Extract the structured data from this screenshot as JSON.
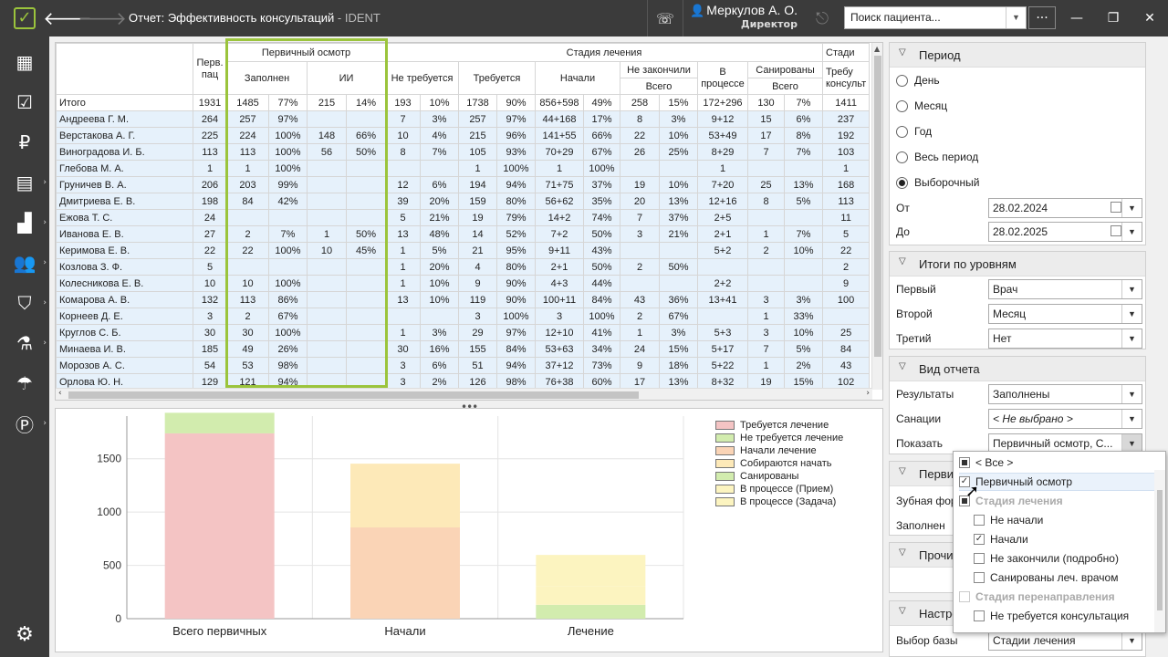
{
  "window": {
    "title": "Отчет: Эффективность консультаций",
    "app_suffix": " - IDENT"
  },
  "user": {
    "name": "Меркулов А. О.",
    "role": "Директор"
  },
  "search": {
    "placeholder": "Поиск пациента..."
  },
  "grid": {
    "headers": {
      "name": "",
      "first_patients": "Перв. пац",
      "primary_exam": "Первичный осмотр",
      "filled": "Заполнен",
      "ii": "ИИ",
      "treatment_stage": "Стадия лечения",
      "not_required": "Не требуется",
      "required": "Требуется",
      "started": "Начали",
      "not_finished": "Не закончили",
      "not_finished_total": "Всего",
      "in_process": "В процессе",
      "sanitized": "Санированы",
      "sanitized_total": "Всего",
      "stage_cut": "Стади",
      "requires_consult": "Требу консульт"
    },
    "total": [
      "Итого",
      "1931",
      "1485",
      "77%",
      "215",
      "14%",
      "193",
      "10%",
      "1738",
      "90%",
      "856+598",
      "49%",
      "258",
      "15%",
      "172+296",
      "130",
      "7%",
      "1411"
    ],
    "rows": [
      [
        "Андреева Г. М.",
        "264",
        "257",
        "97%",
        "",
        "",
        "7",
        "3%",
        "257",
        "97%",
        "44+168",
        "17%",
        "8",
        "3%",
        "9+12",
        "15",
        "6%",
        "237"
      ],
      [
        "Верстакова А. Г.",
        "225",
        "224",
        "100%",
        "148",
        "66%",
        "10",
        "4%",
        "215",
        "96%",
        "141+55",
        "66%",
        "22",
        "10%",
        "53+49",
        "17",
        "8%",
        "192"
      ],
      [
        "Виноградова И. Б.",
        "113",
        "113",
        "100%",
        "56",
        "50%",
        "8",
        "7%",
        "105",
        "93%",
        "70+29",
        "67%",
        "26",
        "25%",
        "8+29",
        "7",
        "7%",
        "103"
      ],
      [
        "Глебова М. А.",
        "1",
        "1",
        "100%",
        "",
        "",
        "",
        "",
        "1",
        "100%",
        "1",
        "100%",
        "",
        "",
        "1",
        "",
        "",
        "1"
      ],
      [
        "Груничев В. А.",
        "206",
        "203",
        "99%",
        "",
        "",
        "12",
        "6%",
        "194",
        "94%",
        "71+75",
        "37%",
        "19",
        "10%",
        "7+20",
        "25",
        "13%",
        "168"
      ],
      [
        "Дмитриева Е. В.",
        "198",
        "84",
        "42%",
        "",
        "",
        "39",
        "20%",
        "159",
        "80%",
        "56+62",
        "35%",
        "20",
        "13%",
        "12+16",
        "8",
        "5%",
        "113"
      ],
      [
        "Ежова Т. С.",
        "24",
        "",
        "",
        "",
        "",
        "5",
        "21%",
        "19",
        "79%",
        "14+2",
        "74%",
        "7",
        "37%",
        "2+5",
        "",
        "",
        "11"
      ],
      [
        "Иванова Е. В.",
        "27",
        "2",
        "7%",
        "1",
        "50%",
        "13",
        "48%",
        "14",
        "52%",
        "7+2",
        "50%",
        "3",
        "21%",
        "2+1",
        "1",
        "7%",
        "5"
      ],
      [
        "Керимова Е. В.",
        "22",
        "22",
        "100%",
        "10",
        "45%",
        "1",
        "5%",
        "21",
        "95%",
        "9+11",
        "43%",
        "",
        "",
        "5+2",
        "2",
        "10%",
        "22"
      ],
      [
        "Козлова З. Ф.",
        "5",
        "",
        "",
        "",
        "",
        "1",
        "20%",
        "4",
        "80%",
        "2+1",
        "50%",
        "2",
        "50%",
        "",
        "",
        "",
        "2"
      ],
      [
        "Колесникова Е. В.",
        "10",
        "10",
        "100%",
        "",
        "",
        "1",
        "10%",
        "9",
        "90%",
        "4+3",
        "44%",
        "",
        "",
        "2+2",
        "",
        "",
        "9"
      ],
      [
        "Комарова А. В.",
        "132",
        "113",
        "86%",
        "",
        "",
        "13",
        "10%",
        "119",
        "90%",
        "100+11",
        "84%",
        "43",
        "36%",
        "13+41",
        "3",
        "3%",
        "100"
      ],
      [
        "Корнеев Д. Е.",
        "3",
        "2",
        "67%",
        "",
        "",
        "",
        "",
        "3",
        "100%",
        "3",
        "100%",
        "2",
        "67%",
        "",
        "1",
        "33%",
        ""
      ],
      [
        "Круглов С. Б.",
        "30",
        "30",
        "100%",
        "",
        "",
        "1",
        "3%",
        "29",
        "97%",
        "12+10",
        "41%",
        "1",
        "3%",
        "5+3",
        "3",
        "10%",
        "25"
      ],
      [
        "Минаева И. В.",
        "185",
        "49",
        "26%",
        "",
        "",
        "30",
        "16%",
        "155",
        "84%",
        "53+63",
        "34%",
        "24",
        "15%",
        "5+17",
        "7",
        "5%",
        "84"
      ],
      [
        "Морозов А. С.",
        "54",
        "53",
        "98%",
        "",
        "",
        "3",
        "6%",
        "51",
        "94%",
        "37+12",
        "73%",
        "9",
        "18%",
        "5+22",
        "1",
        "2%",
        "43"
      ],
      [
        "Орлова Ю. Н.",
        "129",
        "121",
        "94%",
        "",
        "",
        "3",
        "2%",
        "126",
        "98%",
        "76+38",
        "60%",
        "17",
        "13%",
        "8+32",
        "19",
        "15%",
        "102"
      ]
    ]
  },
  "chart_data": {
    "type": "bar",
    "stacked": true,
    "categories": [
      "Всего первичных",
      "Начали",
      "Лечение"
    ],
    "ylim": [
      0,
      1900
    ],
    "yticks": [
      "0",
      "500",
      "1000",
      "1500"
    ],
    "grid": true,
    "legend_position": "top-right",
    "series": [
      {
        "name": "Требуется лечение",
        "color": "#f4c4c4",
        "values": [
          1738,
          0,
          0
        ]
      },
      {
        "name": "Не требуется лечение",
        "color": "#d2ecae",
        "values": [
          193,
          0,
          0
        ]
      },
      {
        "name": "Начали лечение",
        "color": "#fad4b6",
        "values": [
          0,
          856,
          0
        ]
      },
      {
        "name": "Собираются начать",
        "color": "#fde9b8",
        "values": [
          0,
          598,
          0
        ]
      },
      {
        "name": "Санированы",
        "color": "#d2ecae",
        "values": [
          0,
          0,
          130
        ]
      },
      {
        "name": "В процессе (Прием)",
        "color": "#fcf4c0",
        "values": [
          0,
          0,
          172
        ]
      },
      {
        "name": "В процессе (Задача)",
        "color": "#fcf4c0",
        "values": [
          0,
          0,
          296
        ]
      }
    ]
  },
  "panel": {
    "period": {
      "title": "Период",
      "options": [
        "День",
        "Месяц",
        "Год",
        "Весь период",
        "Выборочный"
      ],
      "selected_index": 4,
      "from_label": "От",
      "from_value": "28.02.2024",
      "to_label": "До",
      "to_value": "28.02.2025"
    },
    "levels": {
      "title": "Итоги по уровням",
      "first_label": "Первый",
      "first_value": "Врач",
      "second_label": "Второй",
      "second_value": "Месяц",
      "third_label": "Третий",
      "third_value": "Нет"
    },
    "view": {
      "title": "Вид отчета",
      "results_label": "Результаты",
      "results_value": "Заполнены",
      "sanations_label": "Санации",
      "sanations_value": "< Не выбрано >",
      "show_label": "Показать",
      "show_value": "Первичный осмотр, С..."
    },
    "primary": {
      "title": "Перви",
      "dental_label": "Зубная фор",
      "filled_label": "Заполнен"
    },
    "other": {
      "title": "Прочи"
    },
    "settings": {
      "title": "Настро",
      "base_label": "Выбор базы",
      "base_value": "Стадии лечения"
    }
  },
  "popup": {
    "items": [
      {
        "label": "< Все >",
        "state": "partial"
      },
      {
        "label": "Первичный осмотр",
        "state": "checked"
      },
      {
        "label": "Стадия лечения",
        "state": "partial"
      },
      {
        "label": "Не начали",
        "state": "unchecked"
      },
      {
        "label": "Начали",
        "state": "checked"
      },
      {
        "label": "Не закончили (подробно)",
        "state": "unchecked"
      },
      {
        "label": "Санированы леч. врачом",
        "state": "unchecked"
      },
      {
        "label": "Стадия перенаправления",
        "state": "unchecked"
      },
      {
        "label": "Не требуется консультация",
        "state": "unchecked"
      }
    ]
  }
}
